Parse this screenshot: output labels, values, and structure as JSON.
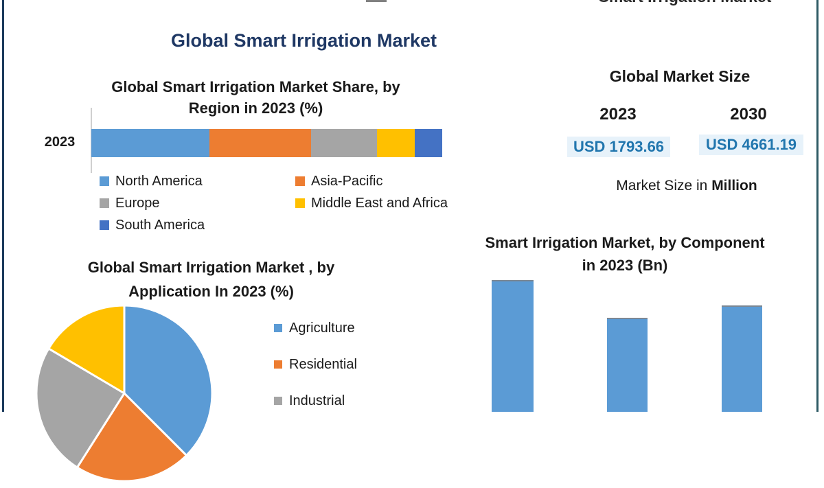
{
  "accent_colors": {
    "navy": "#1F3864",
    "chart_blue": "#5B9BD5",
    "orange": "#ED7D31",
    "gray": "#A5A5A5",
    "yellow": "#FFC000",
    "dark_blue": "#4472C4",
    "usd_blue": "#2176AE",
    "left_border": "#1B3A5C",
    "right_border": "#2E5A64"
  },
  "header": {
    "main_title": "Global Smart Irrigation Market",
    "top_cropped_text": "Smart Irrigation Market"
  },
  "market_size_panel": {
    "title": "Global Market Size",
    "year_left": "2023",
    "year_right": "2030",
    "value_left": "USD 1793.66",
    "value_right": "USD 4661.19",
    "caption_prefix": "Market Size in ",
    "caption_bold": "Million"
  },
  "chart_data": [
    {
      "id": "region-share",
      "type": "bar",
      "variant": "horizontal-stacked",
      "title": "Global Smart Irrigation Market Share, by Region in 2023 (%)",
      "title_lines": [
        "Global Smart Irrigation Market Share, by",
        "Region in 2023 (%)"
      ],
      "categories": [
        "2023"
      ],
      "series": [
        {
          "name": "North America",
          "color": "#5B9BD5",
          "values": [
            33.7
          ]
        },
        {
          "name": "Asia-Pacific",
          "color": "#ED7D31",
          "values": [
            29.0
          ]
        },
        {
          "name": "Europe",
          "color": "#A5A5A5",
          "values": [
            18.8
          ]
        },
        {
          "name": "Middle East and Africa",
          "color": "#FFC000",
          "values": [
            10.6
          ]
        },
        {
          "name": "South America",
          "color": "#4472C4",
          "values": [
            7.9
          ]
        }
      ],
      "legend_position": "bottom",
      "legend_columns": 2,
      "grid": false
    },
    {
      "id": "application-share",
      "type": "pie",
      "title": "Global Smart Irrigation Market , by Application In 2023 (%)",
      "title_lines": [
        "Global Smart Irrigation Market , by",
        "Application In 2023 (%)"
      ],
      "slices": [
        {
          "label": "Agriculture",
          "color": "#5B9BD5",
          "value": 37.5
        },
        {
          "label": "Residential",
          "color": "#ED7D31",
          "value": 21.5
        },
        {
          "label": "Industrial",
          "color": "#A5A5A5",
          "value": 24.5
        },
        {
          "label": "",
          "color": "#FFC000",
          "value": 16.5,
          "note": "fourth slice legend label cut off at bottom edge of image"
        }
      ],
      "start_angle_deg": 0,
      "legend_position": "right",
      "note": "pie is cropped by the bottom edge of the screenshot"
    },
    {
      "id": "component-size",
      "type": "bar",
      "title": "Smart Irrigation Market, by Component in 2023 (Bn)",
      "title_lines": [
        "Smart Irrigation Market, by Component",
        "in 2023 (Bn)"
      ],
      "categories": [
        "",
        "",
        ""
      ],
      "values": [
        190,
        135,
        153
      ],
      "units": "visible bar heights in px; chart cropped at bottom, baseline and category labels not visible",
      "color": "#5B9BD5",
      "grid": false
    }
  ]
}
